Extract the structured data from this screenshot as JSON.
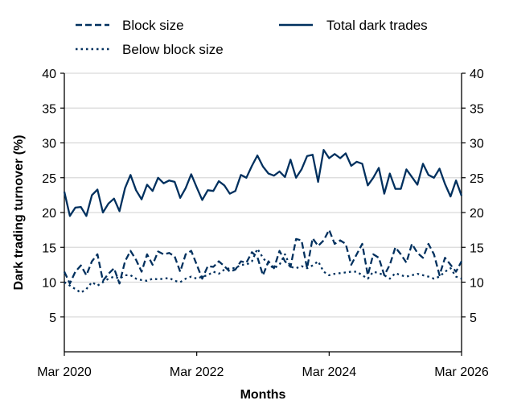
{
  "chart_data": {
    "type": "line",
    "xlabel": "Months",
    "ylabel": "Dark trading turnover (%)",
    "ylim": [
      0,
      40
    ],
    "yticks": [
      5,
      10,
      15,
      20,
      25,
      30,
      35,
      40
    ],
    "xticks": [
      "Mar 2020",
      "Mar 2022",
      "Mar 2024",
      "Mar 2026"
    ],
    "xrange": [
      "2020-03",
      "2026-03"
    ],
    "grid": "horizontal",
    "secondary_y_axis_mirrored": true,
    "legend_placement": "top",
    "color": "#00305e",
    "x": [
      "2020-03",
      "2020-04",
      "2020-05",
      "2020-06",
      "2020-07",
      "2020-08",
      "2020-09",
      "2020-10",
      "2020-11",
      "2020-12",
      "2021-01",
      "2021-02",
      "2021-03",
      "2021-04",
      "2021-05",
      "2021-06",
      "2021-07",
      "2021-08",
      "2021-09",
      "2021-10",
      "2021-11",
      "2021-12",
      "2022-01",
      "2022-02",
      "2022-03",
      "2022-04",
      "2022-05",
      "2022-06",
      "2022-07",
      "2022-08",
      "2022-09",
      "2022-10",
      "2022-11",
      "2022-12",
      "2023-01",
      "2023-02",
      "2023-03",
      "2023-04",
      "2023-05",
      "2023-06",
      "2023-07",
      "2023-08",
      "2023-09",
      "2023-10",
      "2023-11",
      "2023-12",
      "2024-01",
      "2024-02",
      "2024-03",
      "2024-04",
      "2024-05",
      "2024-06",
      "2024-07",
      "2024-08",
      "2024-09",
      "2024-10",
      "2024-11",
      "2024-12",
      "2025-01",
      "2025-02",
      "2025-03",
      "2025-04",
      "2025-05",
      "2025-06",
      "2025-07",
      "2025-08",
      "2025-09",
      "2025-10",
      "2025-11",
      "2025-12",
      "2026-01",
      "2026-02",
      "2026-03"
    ],
    "series": [
      {
        "name": "Block size",
        "style": "dashed",
        "values": [
          11.5,
          9.8,
          11.5,
          12.4,
          11.0,
          13.0,
          14.0,
          10.2,
          11.2,
          12.0,
          9.8,
          13.0,
          14.5,
          13.2,
          11.5,
          14.0,
          12.5,
          14.4,
          14.0,
          14.2,
          13.7,
          11.5,
          14.0,
          14.5,
          12.5,
          10.5,
          12.3,
          12.2,
          13.0,
          12.3,
          11.5,
          11.8,
          13.0,
          12.8,
          14.3,
          13.6,
          11.0,
          13.0,
          12.0,
          14.5,
          13.0,
          12.2,
          16.2,
          16.0,
          12.0,
          16.3,
          15.2,
          16.0,
          17.5,
          15.5,
          16.0,
          15.5,
          12.5,
          14.0,
          15.5,
          11.0,
          14.0,
          13.5,
          11.0,
          12.5,
          15.0,
          14.0,
          12.8,
          15.5,
          14.2,
          13.5,
          15.5,
          14.0,
          11.0,
          13.5,
          12.5,
          11.5,
          13.0
        ]
      },
      {
        "name": "Below block size",
        "style": "dotted",
        "values": [
          10.0,
          9.5,
          9.0,
          8.5,
          9.0,
          10.0,
          9.5,
          10.0,
          10.5,
          10.8,
          10.5,
          11.0,
          11.0,
          10.5,
          10.3,
          10.2,
          10.5,
          10.4,
          10.5,
          10.6,
          10.2,
          10.0,
          10.5,
          10.8,
          10.5,
          10.8,
          11.0,
          11.5,
          11.2,
          11.8,
          12.0,
          12.0,
          12.5,
          12.5,
          13.0,
          14.8,
          13.5,
          12.5,
          12.0,
          12.5,
          14.0,
          12.2,
          12.0,
          12.3,
          12.0,
          12.4,
          13.0,
          11.5,
          11.0,
          11.2,
          11.3,
          11.4,
          11.5,
          11.5,
          11.0,
          10.5,
          11.5,
          11.3,
          11.0,
          10.5,
          11.3,
          11.0,
          10.8,
          11.0,
          11.2,
          11.0,
          10.8,
          10.5,
          10.8,
          11.5,
          12.0,
          10.8,
          10.5
        ]
      },
      {
        "name": "Total dark trades",
        "style": "solid",
        "values": [
          23.0,
          19.5,
          20.7,
          20.8,
          19.5,
          22.5,
          23.3,
          20.0,
          21.3,
          22.0,
          20.2,
          23.5,
          25.4,
          23.2,
          21.9,
          24.0,
          23.1,
          25.0,
          24.2,
          24.6,
          24.4,
          22.1,
          23.5,
          25.5,
          23.6,
          21.8,
          23.2,
          23.1,
          24.5,
          23.9,
          22.7,
          23.1,
          25.4,
          25.0,
          26.7,
          28.2,
          26.6,
          25.6,
          25.3,
          25.9,
          25.1,
          27.6,
          25.0,
          26.2,
          28.1,
          28.3,
          24.4,
          29.0,
          27.8,
          28.4,
          27.8,
          28.5,
          26.7,
          27.3,
          27.0,
          23.9,
          25.0,
          26.4,
          22.7,
          25.6,
          23.4,
          23.4,
          26.2,
          25.1,
          24.0,
          27.0,
          25.4,
          25.0,
          26.3,
          24.1,
          22.3,
          24.6,
          22.4
        ]
      }
    ]
  }
}
